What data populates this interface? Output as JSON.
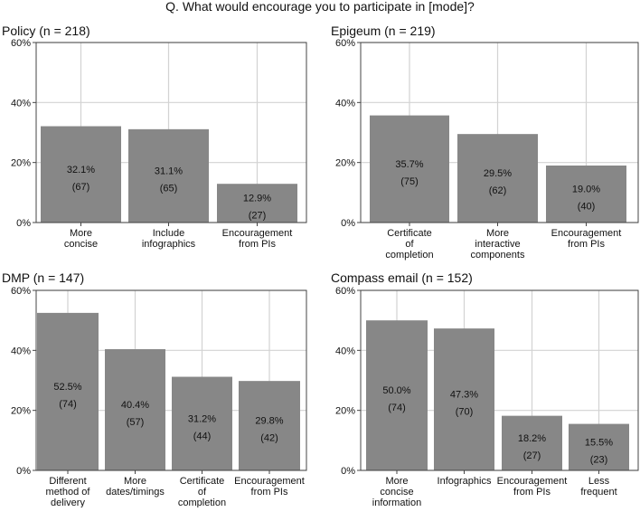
{
  "figure_title": "Q. What would encourage you to participate in [mode]?",
  "colors": {
    "bar": "#878787",
    "grid": "#d3d3d3",
    "frame": "#444444",
    "text": "#111111"
  },
  "chart_data": [
    {
      "type": "bar",
      "title": "Policy (n = 218)",
      "ylim": [
        0,
        60
      ],
      "yticks": [
        "0%",
        "20%",
        "40%",
        "60%"
      ],
      "categories": [
        [
          "More",
          "concise"
        ],
        [
          "Include",
          "infographics"
        ],
        [
          "Encouragement",
          "from PIs"
        ]
      ],
      "values": [
        32.1,
        31.1,
        12.9
      ],
      "value_labels": [
        "32.1%",
        "31.1%",
        "12.9%"
      ],
      "counts": [
        "(67)",
        "(65)",
        "(27)"
      ]
    },
    {
      "type": "bar",
      "title": "Epigeum (n = 219)",
      "ylim": [
        0,
        60
      ],
      "yticks": [
        "0%",
        "20%",
        "40%",
        "60%"
      ],
      "categories": [
        [
          "Certificate",
          "of",
          "completion"
        ],
        [
          "More",
          "interactive",
          "components"
        ],
        [
          "Encouragement",
          "from PIs"
        ]
      ],
      "values": [
        35.7,
        29.5,
        19.0
      ],
      "value_labels": [
        "35.7%",
        "29.5%",
        "19.0%"
      ],
      "counts": [
        "(75)",
        "(62)",
        "(40)"
      ]
    },
    {
      "type": "bar",
      "title": "DMP (n = 147)",
      "ylim": [
        0,
        60
      ],
      "yticks": [
        "0%",
        "20%",
        "40%",
        "60%"
      ],
      "categories": [
        [
          "Different",
          "method of",
          "delivery"
        ],
        [
          "More",
          "dates/timings"
        ],
        [
          "Certificate",
          "of",
          "completion"
        ],
        [
          "Encouragement",
          "from PIs"
        ]
      ],
      "values": [
        52.5,
        40.4,
        31.2,
        29.8
      ],
      "value_labels": [
        "52.5%",
        "40.4%",
        "31.2%",
        "29.8%"
      ],
      "counts": [
        "(74)",
        "(57)",
        "(44)",
        "(42)"
      ]
    },
    {
      "type": "bar",
      "title": "Compass email (n = 152)",
      "ylim": [
        0,
        60
      ],
      "yticks": [
        "0%",
        "20%",
        "40%",
        "60%"
      ],
      "categories": [
        [
          "More",
          "concise",
          "information"
        ],
        [
          "Infographics"
        ],
        [
          "Encouragement",
          "from PIs"
        ],
        [
          "Less",
          "frequent"
        ]
      ],
      "values": [
        50.0,
        47.3,
        18.2,
        15.5
      ],
      "value_labels": [
        "50.0%",
        "47.3%",
        "18.2%",
        "15.5%"
      ],
      "counts": [
        "(74)",
        "(70)",
        "(27)",
        "(23)"
      ]
    }
  ]
}
